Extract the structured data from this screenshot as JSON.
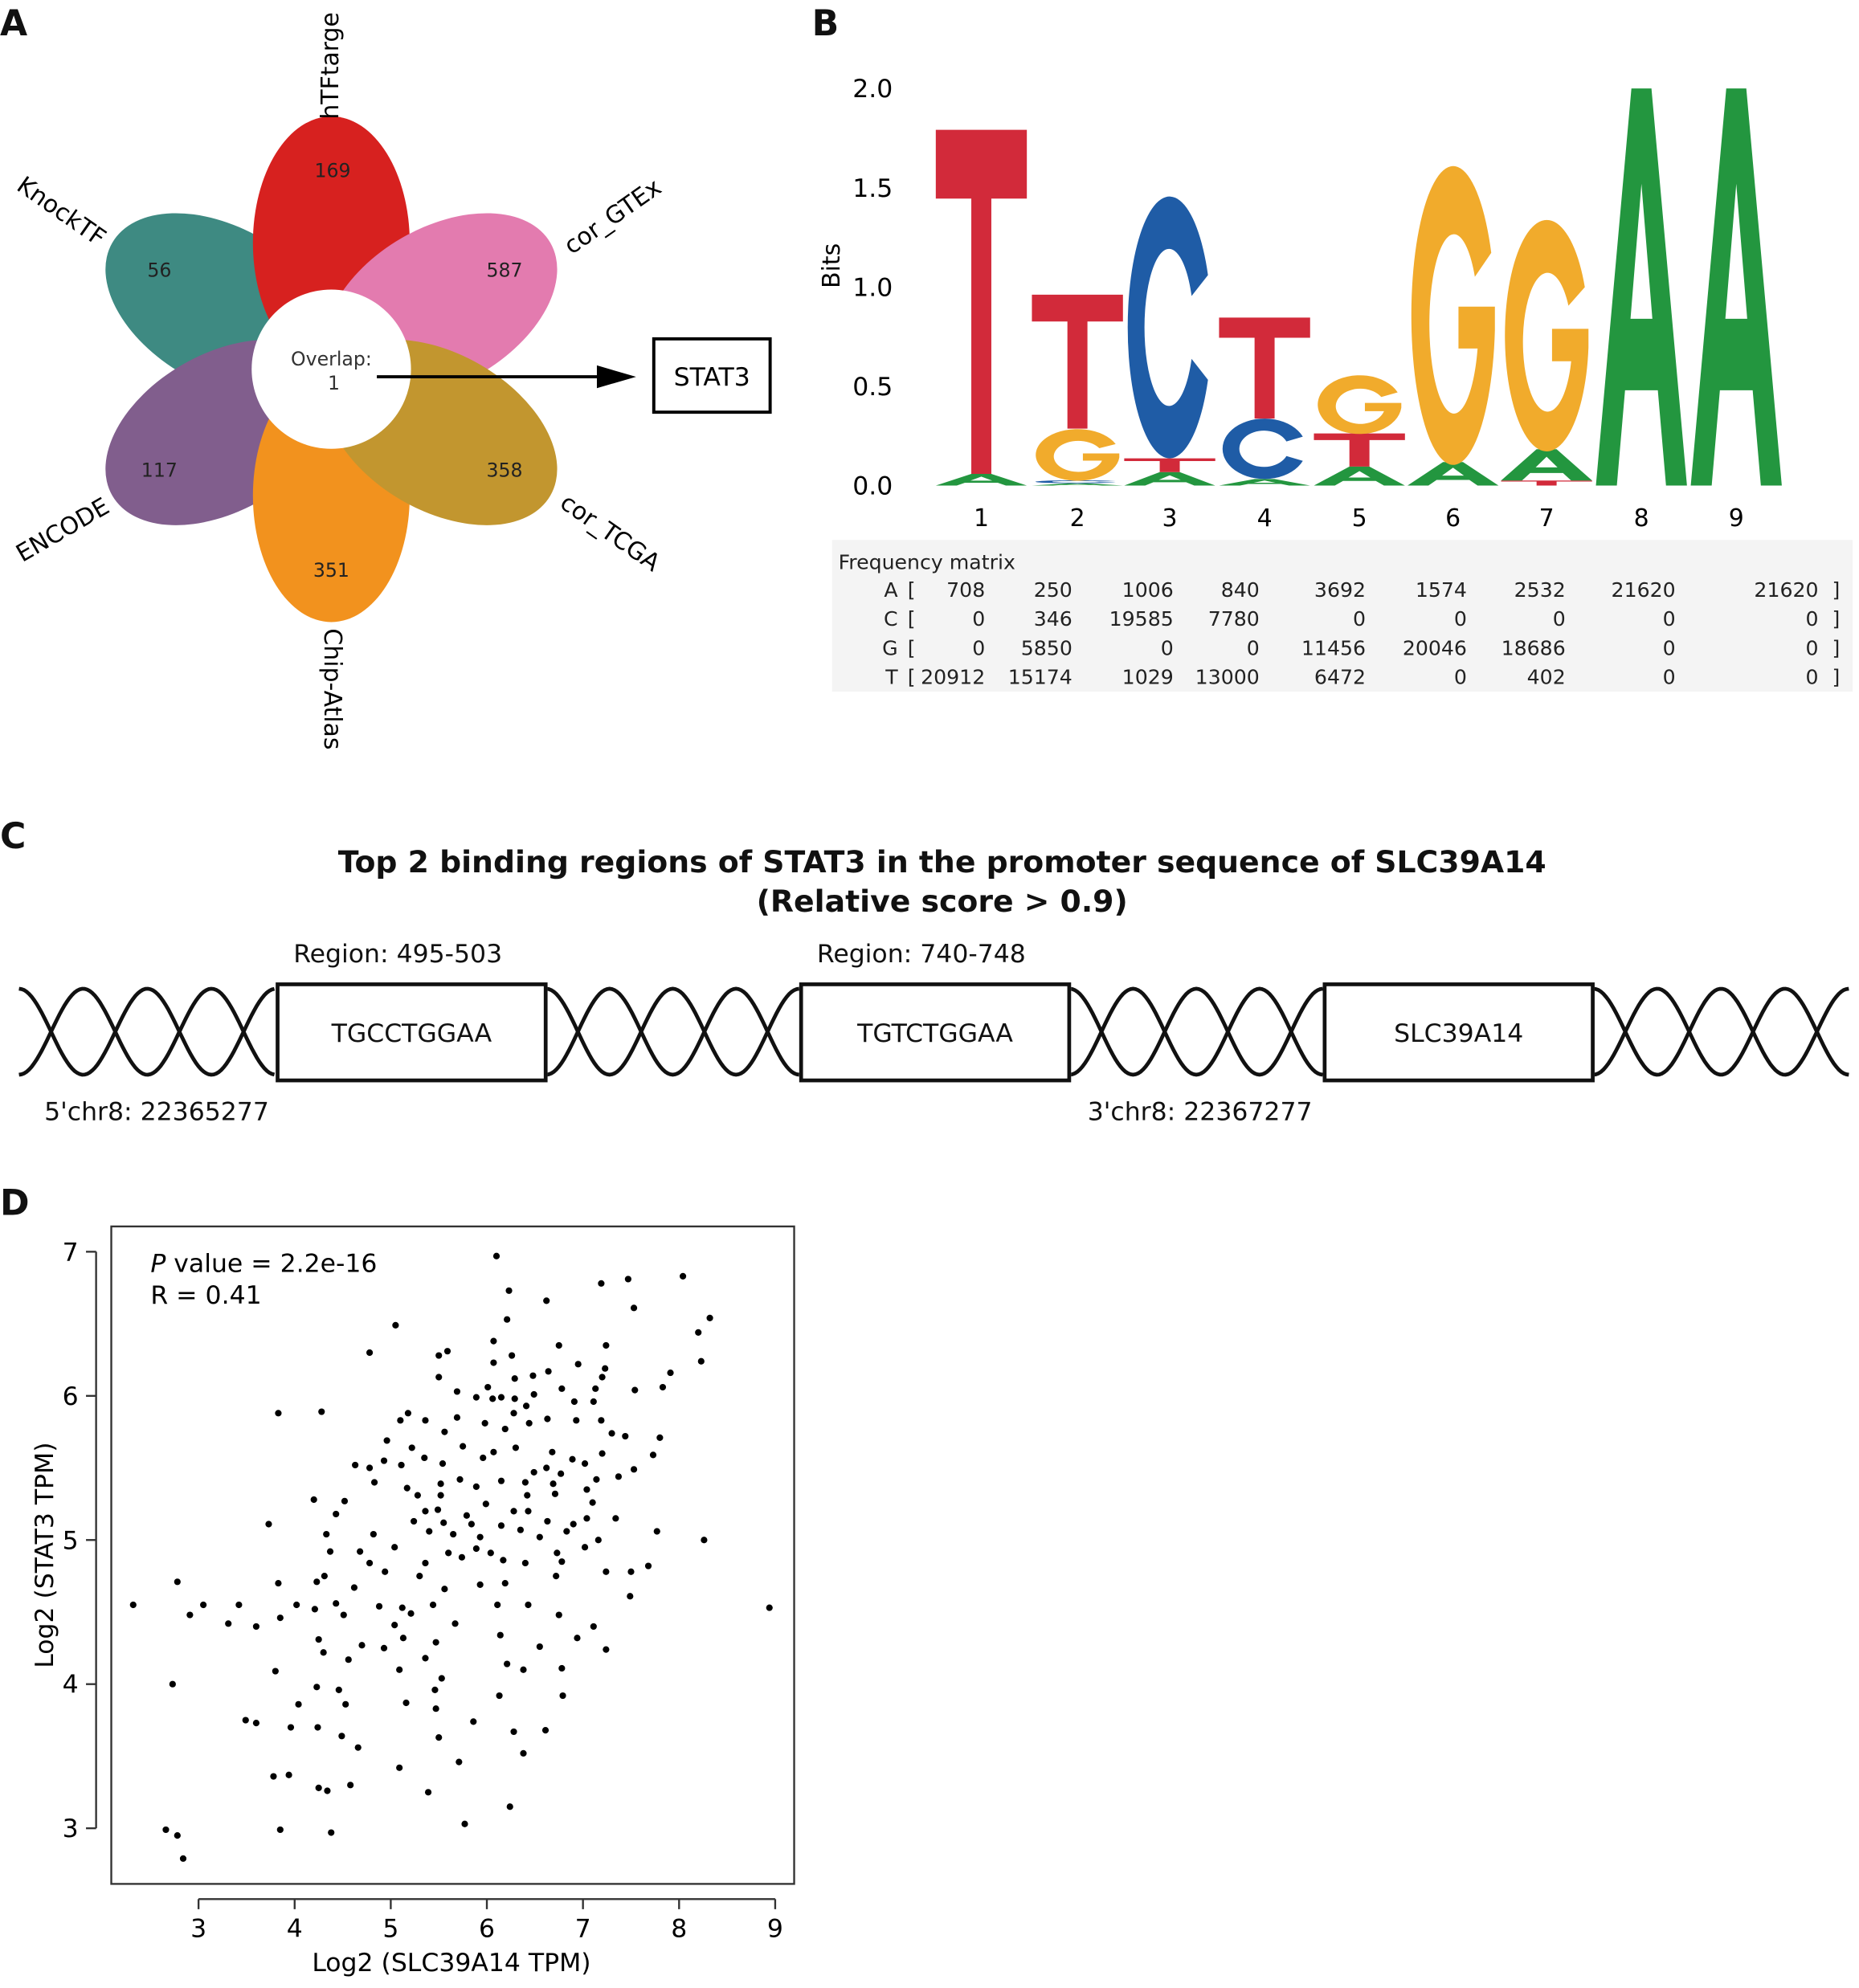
{
  "panels": {
    "a": "A",
    "b": "B",
    "c": "C",
    "d": "D"
  },
  "venn": {
    "sets": [
      {
        "name": "hTFtarge",
        "count": "169",
        "color": "#d7211f"
      },
      {
        "name": "cor_GTEx",
        "count": "587",
        "color": "#e37baf"
      },
      {
        "name": "cor_TCGA",
        "count": "358",
        "color": "#c2962f"
      },
      {
        "name": "Chip-Atlas",
        "count": "351",
        "color": "#f2921e"
      },
      {
        "name": "ENCODE",
        "count": "117",
        "color": "#815e8d"
      },
      {
        "name": "KnockTF",
        "count": "56",
        "color": "#3e8a82"
      }
    ],
    "overlap_label": "Overlap:",
    "overlap_count": "1",
    "result": "STAT3"
  },
  "logo": {
    "ylabel": "Bits",
    "yticks": [
      "0.0",
      "0.5",
      "1.0",
      "1.5",
      "2.0"
    ],
    "positions": [
      "1",
      "2",
      "3",
      "4",
      "5",
      "6",
      "7",
      "8",
      "9"
    ],
    "colors": {
      "A": "#23963f",
      "C": "#1f5ca6",
      "G": "#f1ab2c",
      "T": "#d22a3a"
    },
    "frequency_matrix": {
      "title": "Frequency matrix",
      "rows": [
        {
          "base": "A",
          "open": "[",
          "values": [
            "708",
            "250",
            "1006",
            "840",
            "3692",
            "1574",
            "2532",
            "21620",
            "21620"
          ],
          "close": "]"
        },
        {
          "base": "C",
          "open": "[",
          "values": [
            "0",
            "346",
            "19585",
            "7780",
            "0",
            "0",
            "0",
            "0",
            "0"
          ],
          "close": "]"
        },
        {
          "base": "G",
          "open": "[",
          "values": [
            "0",
            "5850",
            "0",
            "0",
            "11456",
            "20046",
            "18686",
            "0",
            "0"
          ],
          "close": "]"
        },
        {
          "base": "T",
          "open": "[",
          "values": [
            "20912",
            "15174",
            "1029",
            "13000",
            "6472",
            "0",
            "402",
            "0",
            "0"
          ],
          "close": "]"
        }
      ]
    }
  },
  "binding": {
    "title_line1": "Top 2 binding regions of STAT3 in the promoter sequence of SLC39A14",
    "title_line2": "(Relative score > 0.9)",
    "regions": [
      {
        "label": "Region: 495-503",
        "sequence": "TGCCTGGAA"
      },
      {
        "label": "Region: 740-748",
        "sequence": "TGTCTGGAA"
      }
    ],
    "gene": "SLC39A14",
    "start": "5'chr8: 22365277",
    "end": "3'chr8: 22367277"
  },
  "chart_data": {
    "type": "scatter",
    "xlabel": "Log2 (SLC39A14 TPM)",
    "ylabel": "Log2 (STAT3 TPM)",
    "xlim": [
      2.3,
      9.4
    ],
    "ylim": [
      2.65,
      7.15
    ],
    "xticks": [
      "3",
      "4",
      "5",
      "6",
      "7",
      "8",
      "9"
    ],
    "yticks": [
      "3",
      "4",
      "5",
      "6",
      "7"
    ],
    "annotation": {
      "p_label": "P",
      "p_text": " value = 2.2e-16",
      "r_text": "R = 0.41"
    },
    "points": [
      [
        6.1,
        6.97
      ],
      [
        8.04,
        6.83
      ],
      [
        7.47,
        6.81
      ],
      [
        7.19,
        6.78
      ],
      [
        6.23,
        6.73
      ],
      [
        6.62,
        6.66
      ],
      [
        7.53,
        6.61
      ],
      [
        8.32,
        6.54
      ],
      [
        6.21,
        6.53
      ],
      [
        5.05,
        6.49
      ],
      [
        8.2,
        6.44
      ],
      [
        6.07,
        6.38
      ],
      [
        6.75,
        6.35
      ],
      [
        7.24,
        6.35
      ],
      [
        4.78,
        6.3
      ],
      [
        5.5,
        6.28
      ],
      [
        5.59,
        6.31
      ],
      [
        6.26,
        6.28
      ],
      [
        8.23,
        6.24
      ],
      [
        6.07,
        6.23
      ],
      [
        6.95,
        6.22
      ],
      [
        6.64,
        6.17
      ],
      [
        7.23,
        6.19
      ],
      [
        7.91,
        6.16
      ],
      [
        5.5,
        6.13
      ],
      [
        6.48,
        6.14
      ],
      [
        6.29,
        6.12
      ],
      [
        7.2,
        6.13
      ],
      [
        7.83,
        6.06
      ],
      [
        6.01,
        6.06
      ],
      [
        7.13,
        6.05
      ],
      [
        5.69,
        6.03
      ],
      [
        7.54,
        6.04
      ],
      [
        6.78,
        6.05
      ],
      [
        6.49,
        6.01
      ],
      [
        5.89,
        5.99
      ],
      [
        6.06,
        5.98
      ],
      [
        6.15,
        5.99
      ],
      [
        6.29,
        5.98
      ],
      [
        7.11,
        5.96
      ],
      [
        6.91,
        5.96
      ],
      [
        6.41,
        5.93
      ],
      [
        3.83,
        5.88
      ],
      [
        4.28,
        5.89
      ],
      [
        6.28,
        5.88
      ],
      [
        5.18,
        5.88
      ],
      [
        5.1,
        5.83
      ],
      [
        5.36,
        5.83
      ],
      [
        5.69,
        5.85
      ],
      [
        5.98,
        5.81
      ],
      [
        6.63,
        5.84
      ],
      [
        6.93,
        5.83
      ],
      [
        7.19,
        5.83
      ],
      [
        6.44,
        5.81
      ],
      [
        6.19,
        5.77
      ],
      [
        7.3,
        5.74
      ],
      [
        7.44,
        5.72
      ],
      [
        7.8,
        5.71
      ],
      [
        5.56,
        5.75
      ],
      [
        4.96,
        5.69
      ],
      [
        5.22,
        5.64
      ],
      [
        6.3,
        5.64
      ],
      [
        5.75,
        5.65
      ],
      [
        7.73,
        5.59
      ],
      [
        7.2,
        5.6
      ],
      [
        6.07,
        5.61
      ],
      [
        6.68,
        5.61
      ],
      [
        4.63,
        5.52
      ],
      [
        4.78,
        5.5
      ],
      [
        4.93,
        5.55
      ],
      [
        5.11,
        5.52
      ],
      [
        5.35,
        5.57
      ],
      [
        5.54,
        5.53
      ],
      [
        5.96,
        5.57
      ],
      [
        6.89,
        5.56
      ],
      [
        7.02,
        5.53
      ],
      [
        7.53,
        5.49
      ],
      [
        6.49,
        5.47
      ],
      [
        6.62,
        5.5
      ],
      [
        6.77,
        5.46
      ],
      [
        7.37,
        5.44
      ],
      [
        4.83,
        5.4
      ],
      [
        5.52,
        5.39
      ],
      [
        5.72,
        5.42
      ],
      [
        5.89,
        5.37
      ],
      [
        6.15,
        5.41
      ],
      [
        6.4,
        5.4
      ],
      [
        6.69,
        5.39
      ],
      [
        7.14,
        5.42
      ],
      [
        4.2,
        5.28
      ],
      [
        4.52,
        5.27
      ],
      [
        5.17,
        5.36
      ],
      [
        5.28,
        5.31
      ],
      [
        5.52,
        5.31
      ],
      [
        6.42,
        5.31
      ],
      [
        6.71,
        5.32
      ],
      [
        7.04,
        5.35
      ],
      [
        7.1,
        5.26
      ],
      [
        4.43,
        5.18
      ],
      [
        5.36,
        5.2
      ],
      [
        5.49,
        5.21
      ],
      [
        5.79,
        5.17
      ],
      [
        5.99,
        5.25
      ],
      [
        6.28,
        5.2
      ],
      [
        6.43,
        5.2
      ],
      [
        3.73,
        5.11
      ],
      [
        5.24,
        5.13
      ],
      [
        5.55,
        5.12
      ],
      [
        5.84,
        5.11
      ],
      [
        6.15,
        5.1
      ],
      [
        6.63,
        5.13
      ],
      [
        6.9,
        5.11
      ],
      [
        7.04,
        5.15
      ],
      [
        7.34,
        5.15
      ],
      [
        4.33,
        5.04
      ],
      [
        4.82,
        5.04
      ],
      [
        5.4,
        5.06
      ],
      [
        5.65,
        5.04
      ],
      [
        5.93,
        5.02
      ],
      [
        6.35,
        5.07
      ],
      [
        6.55,
        5.02
      ],
      [
        6.83,
        5.06
      ],
      [
        7.77,
        5.06
      ],
      [
        8.26,
        5.0
      ],
      [
        5.04,
        4.95
      ],
      [
        4.37,
        4.92
      ],
      [
        4.68,
        4.92
      ],
      [
        5.6,
        4.91
      ],
      [
        5.89,
        4.94
      ],
      [
        6.04,
        4.91
      ],
      [
        6.73,
        4.91
      ],
      [
        7.02,
        4.95
      ],
      [
        7.16,
        5.0
      ],
      [
        4.78,
        4.84
      ],
      [
        4.94,
        4.78
      ],
      [
        5.36,
        4.84
      ],
      [
        5.74,
        4.88
      ],
      [
        6.17,
        4.86
      ],
      [
        6.4,
        4.84
      ],
      [
        6.78,
        4.85
      ],
      [
        7.68,
        4.82
      ],
      [
        2.78,
        4.71
      ],
      [
        3.83,
        4.7
      ],
      [
        4.23,
        4.71
      ],
      [
        4.31,
        4.75
      ],
      [
        4.62,
        4.67
      ],
      [
        5.3,
        4.75
      ],
      [
        5.56,
        4.66
      ],
      [
        5.93,
        4.69
      ],
      [
        6.19,
        4.7
      ],
      [
        6.72,
        4.75
      ],
      [
        7.24,
        4.78
      ],
      [
        7.5,
        4.78
      ],
      [
        2.32,
        4.55
      ],
      [
        3.05,
        4.55
      ],
      [
        3.42,
        4.55
      ],
      [
        4.02,
        4.55
      ],
      [
        4.43,
        4.56
      ],
      [
        4.88,
        4.54
      ],
      [
        5.12,
        4.53
      ],
      [
        5.44,
        4.55
      ],
      [
        6.11,
        4.55
      ],
      [
        6.43,
        4.55
      ],
      [
        7.49,
        4.61
      ],
      [
        8.94,
        4.53
      ],
      [
        2.91,
        4.48
      ],
      [
        3.31,
        4.42
      ],
      [
        3.6,
        4.4
      ],
      [
        4.21,
        4.52
      ],
      [
        3.85,
        4.46
      ],
      [
        4.51,
        4.48
      ],
      [
        5.04,
        4.41
      ],
      [
        5.21,
        4.49
      ],
      [
        5.67,
        4.42
      ],
      [
        6.75,
        4.48
      ],
      [
        7.11,
        4.4
      ],
      [
        4.25,
        4.31
      ],
      [
        4.7,
        4.27
      ],
      [
        5.13,
        4.32
      ],
      [
        5.47,
        4.29
      ],
      [
        6.14,
        4.34
      ],
      [
        6.55,
        4.26
      ],
      [
        6.94,
        4.32
      ],
      [
        7.24,
        4.24
      ],
      [
        4.3,
        4.22
      ],
      [
        4.56,
        4.17
      ],
      [
        4.93,
        4.25
      ],
      [
        5.36,
        4.18
      ],
      [
        3.8,
        4.09
      ],
      [
        5.09,
        4.1
      ],
      [
        5.53,
        4.04
      ],
      [
        6.21,
        4.14
      ],
      [
        6.38,
        4.1
      ],
      [
        6.78,
        4.11
      ],
      [
        2.73,
        4.0
      ],
      [
        4.23,
        3.98
      ],
      [
        4.46,
        3.96
      ],
      [
        5.46,
        3.96
      ],
      [
        6.13,
        3.92
      ],
      [
        6.79,
        3.92
      ],
      [
        4.04,
        3.86
      ],
      [
        4.53,
        3.86
      ],
      [
        5.16,
        3.87
      ],
      [
        3.49,
        3.75
      ],
      [
        3.6,
        3.73
      ],
      [
        3.96,
        3.7
      ],
      [
        4.24,
        3.7
      ],
      [
        5.86,
        3.74
      ],
      [
        5.47,
        3.83
      ],
      [
        6.61,
        3.68
      ],
      [
        4.49,
        3.64
      ],
      [
        5.5,
        3.63
      ],
      [
        6.28,
        3.67
      ],
      [
        4.66,
        3.56
      ],
      [
        5.09,
        3.42
      ],
      [
        5.71,
        3.46
      ],
      [
        6.38,
        3.52
      ],
      [
        3.78,
        3.36
      ],
      [
        3.94,
        3.37
      ],
      [
        4.25,
        3.28
      ],
      [
        4.34,
        3.26
      ],
      [
        4.58,
        3.3
      ],
      [
        5.39,
        3.25
      ],
      [
        6.24,
        3.15
      ],
      [
        2.66,
        2.99
      ],
      [
        2.78,
        2.95
      ],
      [
        3.85,
        2.99
      ],
      [
        4.38,
        2.97
      ],
      [
        5.77,
        3.03
      ],
      [
        2.84,
        2.79
      ]
    ]
  }
}
